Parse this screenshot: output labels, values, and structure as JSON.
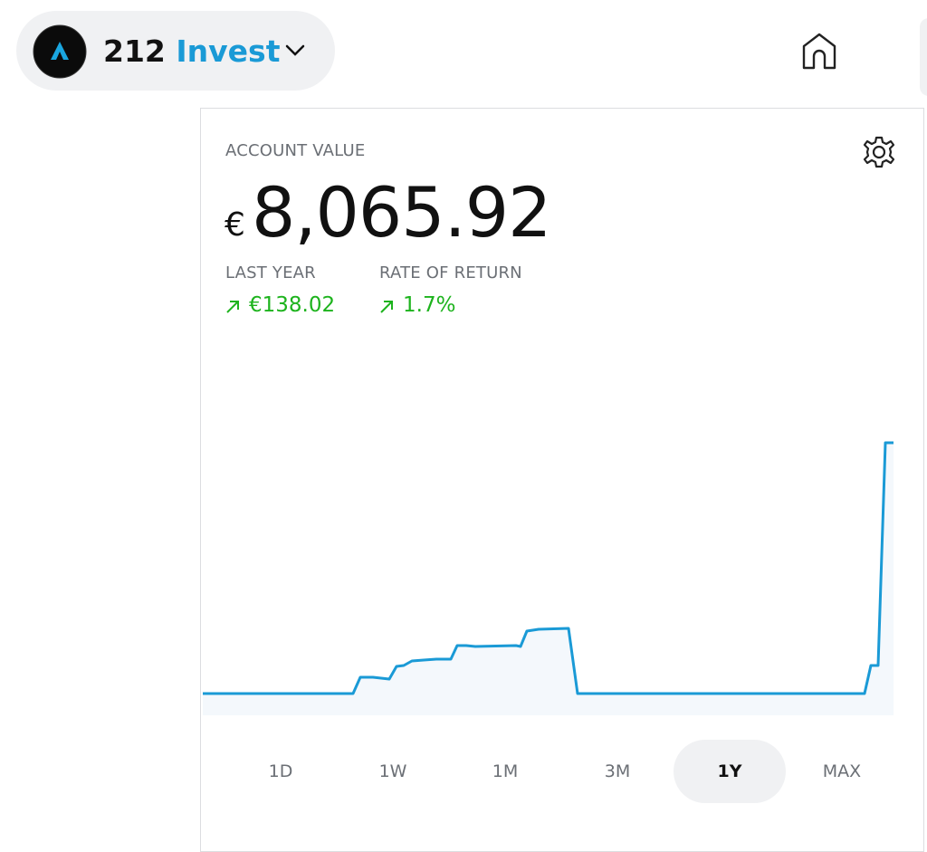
{
  "header": {
    "brand_number": "212",
    "brand_name": "Invest"
  },
  "account": {
    "label": "ACCOUNT VALUE",
    "currency": "€",
    "amount": "8,065.92"
  },
  "stats": [
    {
      "label": "LAST YEAR",
      "value": "€138.02"
    },
    {
      "label": "RATE OF RETURN",
      "value": "1.7%"
    }
  ],
  "ranges": [
    "1D",
    "1W",
    "1M",
    "3M",
    "1Y",
    "MAX"
  ],
  "selected_range": "1Y"
}
